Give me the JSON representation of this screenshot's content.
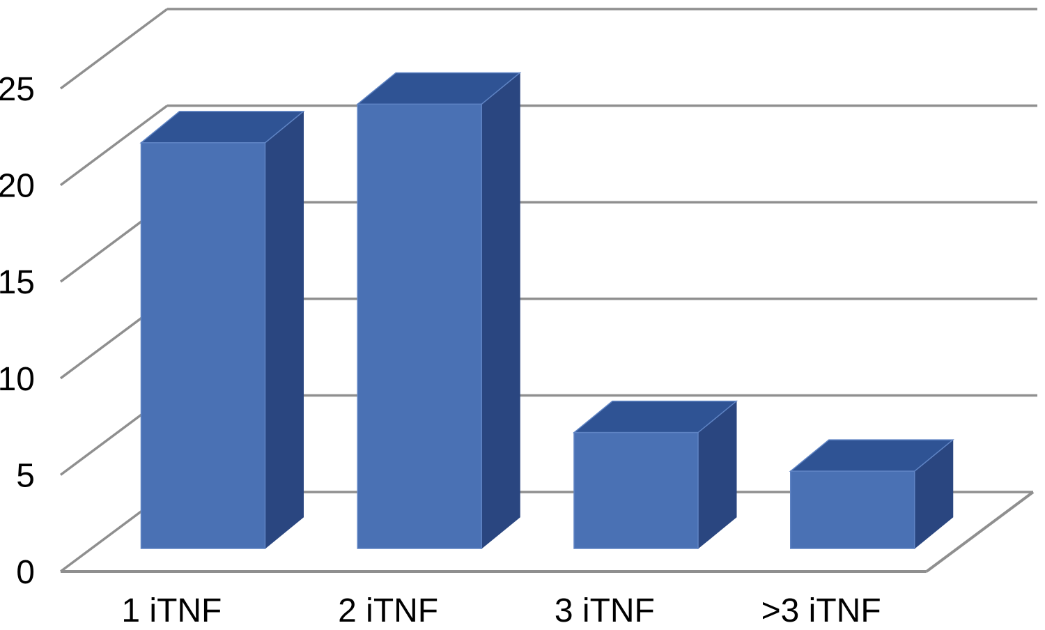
{
  "chart_data": {
    "type": "bar",
    "projection": "3d-column",
    "title": "",
    "xlabel": "",
    "ylabel": "",
    "categories": [
      "1 iTNF",
      "2 iTNF",
      "3 iTNF",
      ">3 iTNF"
    ],
    "values": [
      21,
      23,
      6,
      4
    ],
    "yticks": [
      0,
      5,
      10,
      15,
      20,
      25
    ],
    "ylim": [
      0,
      25
    ],
    "grid": true,
    "legend": false,
    "colors": {
      "bar_front": "#4a71b4",
      "bar_top": "#2f5394",
      "bar_side": "#2a4680",
      "bar_edge": "#5f84c4",
      "gridline": "#8f8f8f",
      "text": "#000000",
      "background": "#ffffff"
    }
  }
}
